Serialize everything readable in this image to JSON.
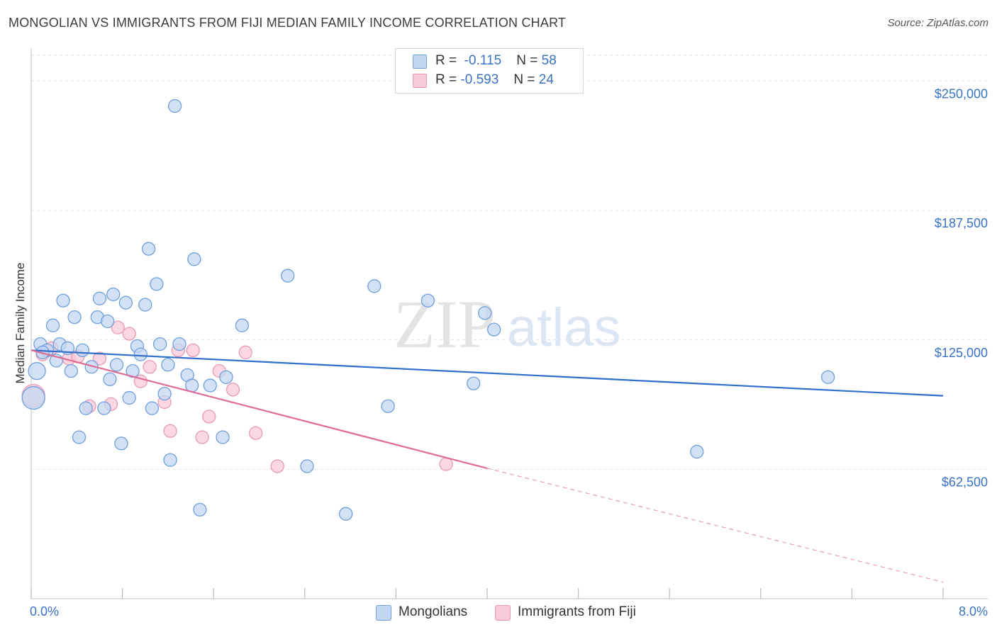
{
  "header": {
    "title": "MONGOLIAN VS IMMIGRANTS FROM FIJI MEDIAN FAMILY INCOME CORRELATION CHART",
    "source": "Source: ZipAtlas.com"
  },
  "watermark": {
    "zip": "ZIP",
    "atlas": "atlas"
  },
  "legend": {
    "rows": [
      {
        "r_label": "R =",
        "r_value": "-0.115",
        "n_label": "N =",
        "n_value": "58"
      },
      {
        "r_label": "R =",
        "r_value": "-0.593",
        "n_label": "N =",
        "n_value": "24"
      }
    ]
  },
  "colors": {
    "blue_fill": "#c3d7f3",
    "blue_stroke": "#6f9fdc",
    "blue_line": "#2f6fca",
    "pink_fill": "#f8cad8",
    "pink_stroke": "#e89ab3",
    "pink_line": "#e06c95",
    "grid": "#e2e2e2",
    "tick_text": "#3a72c4"
  },
  "chart_data": {
    "type": "scatter",
    "title": "MONGOLIAN VS IMMIGRANTS FROM FIJI MEDIAN FAMILY INCOME CORRELATION CHART",
    "xlabel": "",
    "ylabel": "Median Family Income",
    "xlim": [
      0,
      8
    ],
    "ylim": [
      0,
      262500
    ],
    "x_tick_labels": [
      "0.0%",
      "8.0%"
    ],
    "y_ticks": [
      62500,
      125000,
      187500,
      250000
    ],
    "y_tick_labels": [
      "$62,500",
      "$125,000",
      "$187,500",
      "$250,000"
    ],
    "grid": true,
    "legend_position": "bottom",
    "series": [
      {
        "name": "Mongolians",
        "points": [
          [
            0.05,
            110000,
            12
          ],
          [
            0.08,
            123000,
            9
          ],
          [
            0.14,
            120000,
            9
          ],
          [
            0.19,
            132000,
            9
          ],
          [
            0.22,
            115000,
            9
          ],
          [
            0.25,
            123000,
            9
          ],
          [
            0.28,
            144000,
            9
          ],
          [
            0.32,
            121000,
            9
          ],
          [
            0.35,
            110000,
            9
          ],
          [
            0.38,
            136000,
            9
          ],
          [
            0.42,
            78000,
            9
          ],
          [
            0.45,
            120000,
            9
          ],
          [
            0.48,
            92000,
            9
          ],
          [
            0.53,
            112000,
            9
          ],
          [
            0.58,
            136000,
            9
          ],
          [
            0.6,
            145000,
            9
          ],
          [
            0.64,
            92000,
            9
          ],
          [
            0.67,
            134000,
            9
          ],
          [
            0.69,
            106000,
            9
          ],
          [
            0.72,
            147000,
            9
          ],
          [
            0.75,
            113000,
            9
          ],
          [
            0.79,
            75000,
            9
          ],
          [
            0.83,
            143000,
            9
          ],
          [
            0.86,
            97000,
            9
          ],
          [
            0.89,
            110000,
            9
          ],
          [
            0.93,
            122000,
            9
          ],
          [
            0.96,
            118000,
            9
          ],
          [
            1.0,
            142000,
            9
          ],
          [
            1.03,
            169000,
            9
          ],
          [
            1.06,
            92000,
            9
          ],
          [
            1.1,
            152000,
            9
          ],
          [
            1.13,
            123000,
            9
          ],
          [
            1.17,
            99000,
            9
          ],
          [
            1.2,
            113000,
            9
          ],
          [
            1.22,
            67000,
            9
          ],
          [
            1.26,
            238000,
            9
          ],
          [
            1.3,
            123000,
            9
          ],
          [
            1.37,
            108000,
            9
          ],
          [
            1.41,
            103000,
            9
          ],
          [
            1.43,
            164000,
            9
          ],
          [
            1.48,
            43000,
            9
          ],
          [
            1.57,
            103000,
            9
          ],
          [
            1.68,
            78000,
            9
          ],
          [
            1.71,
            107000,
            9
          ],
          [
            1.85,
            132000,
            9
          ],
          [
            2.25,
            156000,
            9
          ],
          [
            2.42,
            64000,
            9
          ],
          [
            2.76,
            41000,
            9
          ],
          [
            3.01,
            151000,
            9
          ],
          [
            3.13,
            93000,
            9
          ],
          [
            3.48,
            144000,
            9
          ],
          [
            3.88,
            104000,
            9
          ],
          [
            3.98,
            138000,
            9
          ],
          [
            4.06,
            130000,
            9
          ],
          [
            5.84,
            71000,
            9
          ],
          [
            6.99,
            107000,
            9
          ],
          [
            0.02,
            97000,
            16
          ],
          [
            0.1,
            119000,
            9
          ]
        ]
      },
      {
        "name": "Immigrants from Fiji",
        "points": [
          [
            0.02,
            98000,
            16
          ],
          [
            0.1,
            118000,
            9
          ],
          [
            0.18,
            121000,
            9
          ],
          [
            0.33,
            116000,
            9
          ],
          [
            0.41,
            117000,
            9
          ],
          [
            0.51,
            93000,
            9
          ],
          [
            0.6,
            116000,
            9
          ],
          [
            0.7,
            94000,
            9
          ],
          [
            0.76,
            131000,
            9
          ],
          [
            0.86,
            128000,
            9
          ],
          [
            0.96,
            105000,
            9
          ],
          [
            1.04,
            112000,
            9
          ],
          [
            1.17,
            95000,
            9
          ],
          [
            1.22,
            81000,
            9
          ],
          [
            1.29,
            120000,
            9
          ],
          [
            1.42,
            120000,
            9
          ],
          [
            1.5,
            78000,
            9
          ],
          [
            1.56,
            88000,
            9
          ],
          [
            1.65,
            110000,
            9
          ],
          [
            1.77,
            101000,
            9
          ],
          [
            1.88,
            119000,
            9
          ],
          [
            1.97,
            80000,
            9
          ],
          [
            2.16,
            64000,
            9
          ],
          [
            3.64,
            65000,
            9
          ]
        ]
      }
    ],
    "trend_lines": [
      {
        "series": "Mongolians",
        "from": [
          0,
          120000
        ],
        "to": [
          8,
          98000
        ]
      },
      {
        "series": "Immigrants from Fiji",
        "from": [
          0,
          120000
        ],
        "to": [
          4.0,
          63000
        ],
        "dashed_to": [
          8,
          8000
        ]
      }
    ]
  },
  "bottom_legend": {
    "items": [
      {
        "label": "Mongolians"
      },
      {
        "label": "Immigrants from Fiji"
      }
    ]
  }
}
